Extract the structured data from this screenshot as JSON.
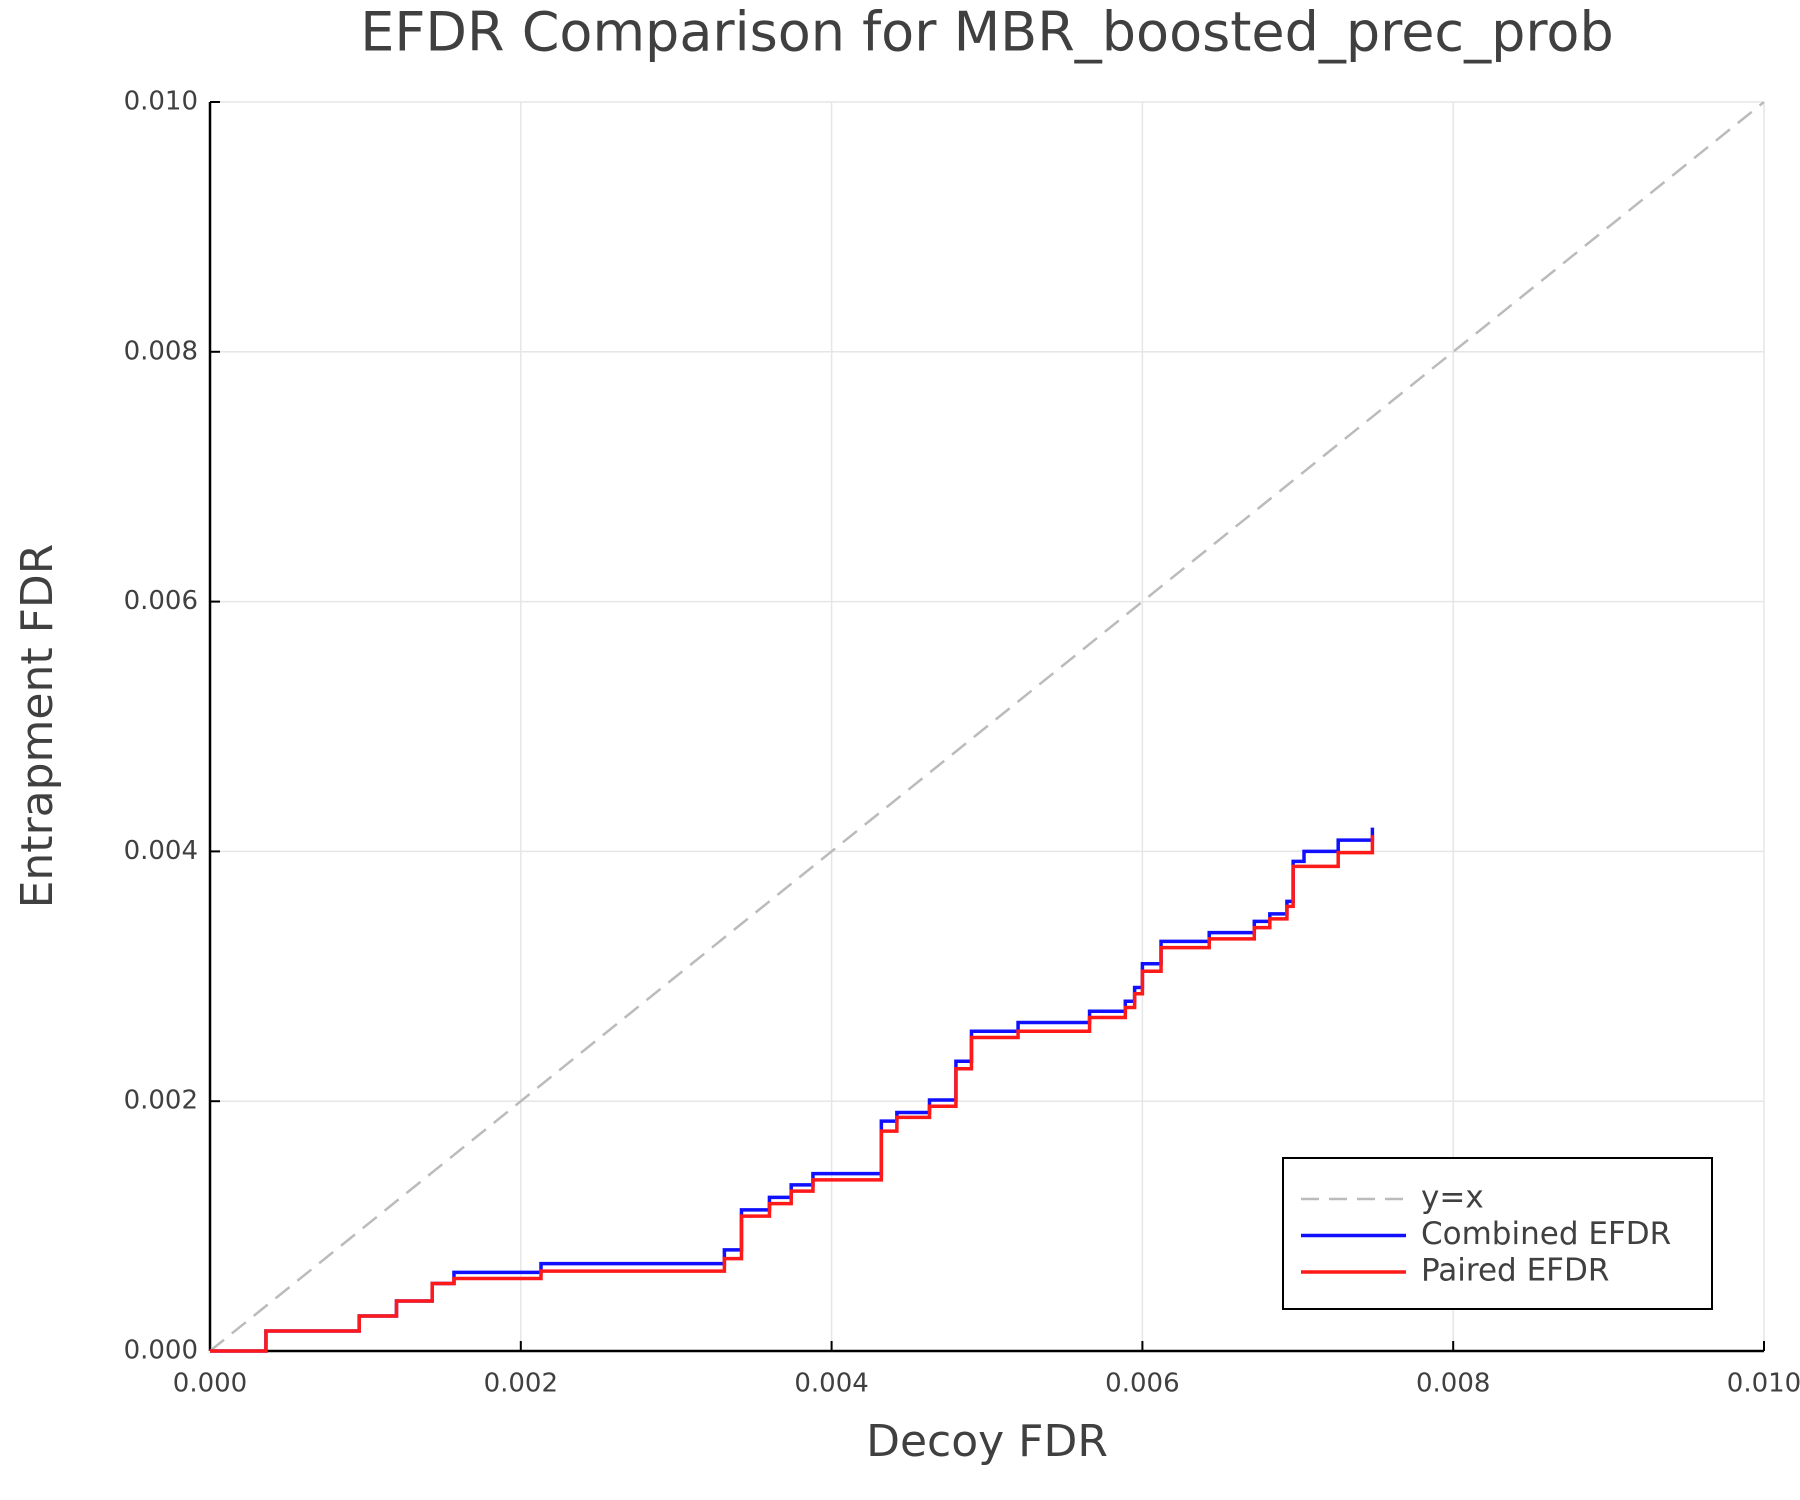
{
  "chart_data": {
    "type": "line",
    "title": "EFDR Comparison for MBR_boosted_prec_prob",
    "x_label": "Decoy FDR",
    "y_label": "Entrapment FDR",
    "xlim": [
      0,
      0.01
    ],
    "ylim": [
      0,
      0.01
    ],
    "xticks": [
      {
        "value": 0,
        "label": "0.000"
      },
      {
        "value": 0.002,
        "label": "0.002"
      },
      {
        "value": 0.004,
        "label": "0.004"
      },
      {
        "value": 0.006,
        "label": "0.006"
      },
      {
        "value": 0.008,
        "label": "0.008"
      },
      {
        "value": 0.01,
        "label": "0.010"
      }
    ],
    "yticks": [
      {
        "value": 0,
        "label": "0.000"
      },
      {
        "value": 0.002,
        "label": "0.002"
      },
      {
        "value": 0.004,
        "label": "0.004"
      },
      {
        "value": 0.006,
        "label": "0.006"
      },
      {
        "value": 0.008,
        "label": "0.008"
      },
      {
        "value": 0.01,
        "label": "0.010"
      }
    ],
    "grid": true,
    "legend": "bottom-right",
    "series": [
      {
        "name": "y=x",
        "color": "#bbbbbb",
        "dash": true,
        "step": false,
        "x": [
          0,
          0.01
        ],
        "values": [
          0,
          0.01
        ]
      },
      {
        "name": "Combined EFDR",
        "color": "#1010ff",
        "dash": false,
        "step": true,
        "x": [
          0,
          0.00036,
          0.00096,
          0.0012,
          0.00143,
          0.00157,
          0.00213,
          0.00331,
          0.00342,
          0.0036,
          0.00374,
          0.00388,
          0.00432,
          0.00442,
          0.00463,
          0.0048,
          0.0049,
          0.0052,
          0.00566,
          0.00589,
          0.00595,
          0.006,
          0.00612,
          0.00643,
          0.00672,
          0.00682,
          0.00693,
          0.00697,
          0.00704,
          0.00726,
          0.00748
        ],
        "values": [
          0,
          0.00016,
          0.00028,
          0.0004,
          0.00054,
          0.00063,
          0.0007,
          0.00081,
          0.00113,
          0.00123,
          0.00133,
          0.00142,
          0.00184,
          0.00191,
          0.00201,
          0.00232,
          0.00256,
          0.00263,
          0.00272,
          0.0028,
          0.00291,
          0.0031,
          0.00328,
          0.00335,
          0.00344,
          0.0035,
          0.0036,
          0.00392,
          0.004,
          0.00409,
          0.00419
        ]
      },
      {
        "name": "Paired EFDR",
        "color": "#ff1a1a",
        "dash": false,
        "step": true,
        "x": [
          0,
          0.00036,
          0.00096,
          0.0012,
          0.00143,
          0.00157,
          0.00213,
          0.00331,
          0.00342,
          0.0036,
          0.00374,
          0.00388,
          0.00432,
          0.00442,
          0.00463,
          0.0048,
          0.0049,
          0.0052,
          0.00566,
          0.00589,
          0.00595,
          0.006,
          0.00612,
          0.00643,
          0.00672,
          0.00682,
          0.00693,
          0.00697,
          0.00726,
          0.00748
        ],
        "values": [
          0,
          0.00016,
          0.00028,
          0.0004,
          0.00054,
          0.00058,
          0.00064,
          0.00074,
          0.00108,
          0.00118,
          0.00128,
          0.00137,
          0.00176,
          0.00187,
          0.00196,
          0.00226,
          0.00251,
          0.00256,
          0.00267,
          0.00275,
          0.00286,
          0.00304,
          0.00323,
          0.0033,
          0.00339,
          0.00346,
          0.00356,
          0.00388,
          0.00399,
          0.00413
        ]
      }
    ]
  }
}
